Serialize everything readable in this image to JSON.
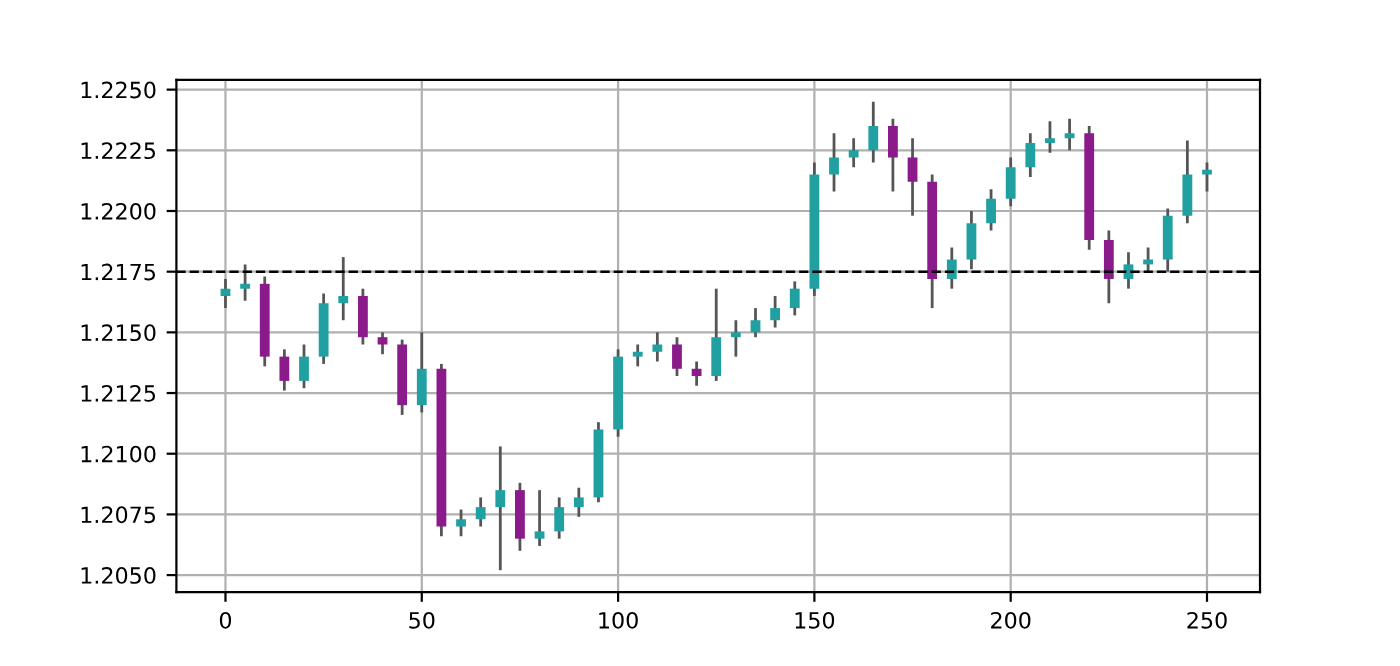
{
  "chart_data": {
    "type": "candlestick",
    "x": [
      0,
      5,
      10,
      15,
      20,
      25,
      30,
      35,
      40,
      45,
      50,
      55,
      60,
      65,
      70,
      75,
      80,
      85,
      90,
      95,
      100,
      105,
      110,
      115,
      120,
      125,
      130,
      135,
      140,
      145,
      150,
      155,
      160,
      165,
      170,
      175,
      180,
      185,
      190,
      195,
      200,
      205,
      210,
      215,
      220,
      225,
      230,
      235,
      240,
      245,
      250
    ],
    "ohlc": [
      [
        1.2165,
        1.2172,
        1.216,
        1.2168
      ],
      [
        1.2168,
        1.2178,
        1.2163,
        1.217
      ],
      [
        1.217,
        1.2173,
        1.2136,
        1.214
      ],
      [
        1.214,
        1.2143,
        1.2126,
        1.213
      ],
      [
        1.213,
        1.2145,
        1.2127,
        1.214
      ],
      [
        1.214,
        1.2166,
        1.2137,
        1.2162
      ],
      [
        1.2162,
        1.2181,
        1.2155,
        1.2165
      ],
      [
        1.2165,
        1.2168,
        1.2145,
        1.2148
      ],
      [
        1.2148,
        1.215,
        1.2141,
        1.2145
      ],
      [
        1.2145,
        1.2147,
        1.2116,
        1.212
      ],
      [
        1.212,
        1.215,
        1.2117,
        1.2135
      ],
      [
        1.2135,
        1.2137,
        1.2066,
        1.207
      ],
      [
        1.207,
        1.2077,
        1.2066,
        1.2073
      ],
      [
        1.2073,
        1.2082,
        1.207,
        1.2078
      ],
      [
        1.2078,
        1.2103,
        1.2052,
        1.2085
      ],
      [
        1.2085,
        1.2088,
        1.206,
        1.2065
      ],
      [
        1.2065,
        1.2085,
        1.2062,
        1.2068
      ],
      [
        1.2068,
        1.2082,
        1.2065,
        1.2078
      ],
      [
        1.2078,
        1.2086,
        1.2074,
        1.2082
      ],
      [
        1.2082,
        1.2113,
        1.208,
        1.211
      ],
      [
        1.211,
        1.2143,
        1.2107,
        1.214
      ],
      [
        1.214,
        1.2145,
        1.2136,
        1.2142
      ],
      [
        1.2142,
        1.215,
        1.2138,
        1.2145
      ],
      [
        1.2145,
        1.2148,
        1.2132,
        1.2135
      ],
      [
        1.2135,
        1.2138,
        1.2128,
        1.2132
      ],
      [
        1.2132,
        1.2168,
        1.213,
        1.2148
      ],
      [
        1.2148,
        1.2155,
        1.214,
        1.215
      ],
      [
        1.215,
        1.216,
        1.2148,
        1.2155
      ],
      [
        1.2155,
        1.2165,
        1.2152,
        1.216
      ],
      [
        1.216,
        1.2171,
        1.2157,
        1.2168
      ],
      [
        1.2168,
        1.222,
        1.2165,
        1.2215
      ],
      [
        1.2215,
        1.2232,
        1.2208,
        1.2222
      ],
      [
        1.2222,
        1.223,
        1.2218,
        1.2225
      ],
      [
        1.2225,
        1.2245,
        1.222,
        1.2235
      ],
      [
        1.2235,
        1.2238,
        1.2208,
        1.2222
      ],
      [
        1.2222,
        1.223,
        1.2198,
        1.2212
      ],
      [
        1.2212,
        1.2215,
        1.216,
        1.2172
      ],
      [
        1.2172,
        1.2185,
        1.2168,
        1.218
      ],
      [
        1.218,
        1.22,
        1.2176,
        1.2195
      ],
      [
        1.2195,
        1.2209,
        1.2192,
        1.2205
      ],
      [
        1.2205,
        1.2222,
        1.2202,
        1.2218
      ],
      [
        1.2218,
        1.2232,
        1.2214,
        1.2228
      ],
      [
        1.2228,
        1.2237,
        1.2224,
        1.223
      ],
      [
        1.223,
        1.2238,
        1.2225,
        1.2232
      ],
      [
        1.2232,
        1.2235,
        1.2184,
        1.2188
      ],
      [
        1.2188,
        1.2192,
        1.2162,
        1.2172
      ],
      [
        1.2172,
        1.2183,
        1.2168,
        1.2178
      ],
      [
        1.2178,
        1.2185,
        1.2175,
        1.218
      ],
      [
        1.218,
        1.2201,
        1.2175,
        1.2198
      ],
      [
        1.2198,
        1.2229,
        1.2195,
        1.2215
      ],
      [
        1.2215,
        1.222,
        1.2208,
        1.2217
      ]
    ],
    "colors": [
      "#20a0a0",
      "#20a0a0",
      "#8b1a8b",
      "#8b1a8b",
      "#20a0a0",
      "#20a0a0",
      "#20a0a0",
      "#8b1a8b",
      "#8b1a8b",
      "#8b1a8b",
      "#20a0a0",
      "#8b1a8b",
      "#20a0a0",
      "#20a0a0",
      "#20a0a0",
      "#8b1a8b",
      "#20a0a0",
      "#20a0a0",
      "#20a0a0",
      "#20a0a0",
      "#20a0a0",
      "#20a0a0",
      "#20a0a0",
      "#8b1a8b",
      "#8b1a8b",
      "#20a0a0",
      "#20a0a0",
      "#20a0a0",
      "#20a0a0",
      "#20a0a0",
      "#20a0a0",
      "#20a0a0",
      "#20a0a0",
      "#20a0a0",
      "#8b1a8b",
      "#8b1a8b",
      "#8b1a8b",
      "#20a0a0",
      "#20a0a0",
      "#20a0a0",
      "#20a0a0",
      "#20a0a0",
      "#20a0a0",
      "#20a0a0",
      "#8b1a8b",
      "#8b1a8b",
      "#20a0a0",
      "#20a0a0",
      "#20a0a0",
      "#20a0a0",
      "#20a0a0"
    ],
    "xlim": [
      -12.5,
      263.5
    ],
    "xticks": [
      0,
      50,
      100,
      150,
      200,
      250
    ],
    "ylim": [
      1.2043,
      1.2254
    ],
    "yticks": [
      {
        "value": 1.205,
        "label": "1.2050"
      },
      {
        "value": 1.2075,
        "label": "1.2075"
      },
      {
        "value": 1.21,
        "label": "1.2100"
      },
      {
        "value": 1.2125,
        "label": "1.2125"
      },
      {
        "value": 1.215,
        "label": "1.2150"
      },
      {
        "value": 1.2175,
        "label": "1.2175"
      },
      {
        "value": 1.22,
        "label": "1.2200"
      },
      {
        "value": 1.2225,
        "label": "1.2225"
      },
      {
        "value": 1.225,
        "label": "1.2250"
      }
    ],
    "grid": true,
    "ref_lines": [
      {
        "axis": "y",
        "value": 1.2175,
        "color": "#000000",
        "line_style": "dashed"
      }
    ]
  }
}
